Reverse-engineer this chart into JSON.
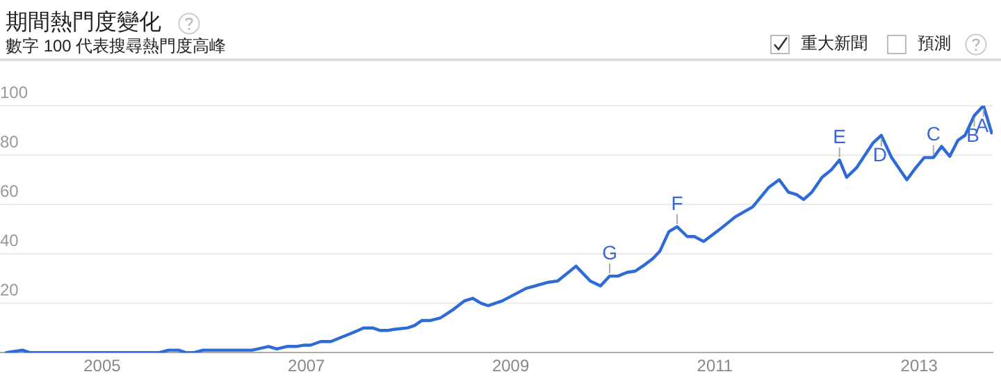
{
  "chart_data": {
    "type": "line",
    "title": "期間熱門度變化",
    "subtitle": "數字 100 代表搜尋熱門度高峰",
    "x": [
      2004.06,
      2004.22,
      2004.29,
      2005.56,
      2005.65,
      2005.75,
      2005.82,
      2005.9,
      2005.99,
      2006.47,
      2006.63,
      2006.71,
      2006.81,
      2006.9,
      2006.97,
      2007.04,
      2007.14,
      2007.24,
      2007.45,
      2007.56,
      2007.65,
      2007.72,
      2007.8,
      2007.87,
      2007.99,
      2008.06,
      2008.13,
      2008.21,
      2008.31,
      2008.44,
      2008.55,
      2008.63,
      2008.71,
      2008.78,
      2008.85,
      2008.92,
      2009.15,
      2009.37,
      2009.46,
      2009.64,
      2009.78,
      2009.88,
      2009.97,
      2010.05,
      2010.14,
      2010.22,
      2010.31,
      2010.39,
      2010.46,
      2010.55,
      2010.63,
      2010.73,
      2010.8,
      2010.89,
      2011.05,
      2011.2,
      2011.37,
      2011.53,
      2011.63,
      2011.72,
      2011.8,
      2011.87,
      2011.95,
      2012.05,
      2012.14,
      2012.22,
      2012.29,
      2012.39,
      2012.55,
      2012.63,
      2012.73,
      2012.88,
      2012.97,
      2013.05,
      2013.14,
      2013.22,
      2013.3,
      2013.38,
      2013.45,
      2013.54,
      2013.63,
      2013.71
    ],
    "series": [
      {
        "color": "#2f6bd6",
        "values": [
          0,
          1,
          0,
          0,
          1,
          1,
          0,
          0,
          1,
          1,
          2.5,
          1.5,
          2.5,
          2.5,
          3,
          3,
          4.5,
          4.5,
          8,
          10,
          10,
          9,
          9,
          9.5,
          10,
          11,
          13,
          13,
          14,
          17.5,
          21,
          22,
          20,
          19,
          20,
          21,
          26,
          28.5,
          29,
          35,
          29,
          27,
          31,
          31,
          32.5,
          33,
          35.5,
          38,
          41,
          49,
          51,
          47,
          47,
          45,
          50,
          55,
          59,
          67,
          70,
          65,
          64,
          62,
          65,
          71,
          74,
          78,
          71,
          75,
          85,
          88,
          79,
          70,
          75,
          79,
          79,
          83.5,
          79.5,
          86,
          88,
          96,
          100,
          89
        ]
      }
    ],
    "xlim": [
      2004.0,
      2013.72
    ],
    "xticks": [
      2005,
      2007,
      2009,
      2011,
      2013
    ],
    "ylim": [
      0,
      100
    ],
    "yticks": [
      {
        "value": 0,
        "label": null
      },
      20,
      40,
      60,
      80,
      100
    ],
    "grid": "y",
    "legend": false,
    "marker": "none",
    "line_style": "solid",
    "annotations": [
      {
        "text": "G",
        "x": 2009.97,
        "y": 31
      },
      {
        "text": "F",
        "x": 2010.63,
        "y": 51
      },
      {
        "text": "E",
        "x": 2012.22,
        "y": 78
      },
      {
        "text": "D",
        "x": 2012.63,
        "y": 88
      },
      {
        "text": "C",
        "x": 2013.14,
        "y": 79
      },
      {
        "text": "B",
        "x": 2013.54,
        "y": 96
      },
      {
        "text": "A",
        "x": 2013.63,
        "y": 100
      },
      "重大新聞",
      "預測"
    ]
  }
}
